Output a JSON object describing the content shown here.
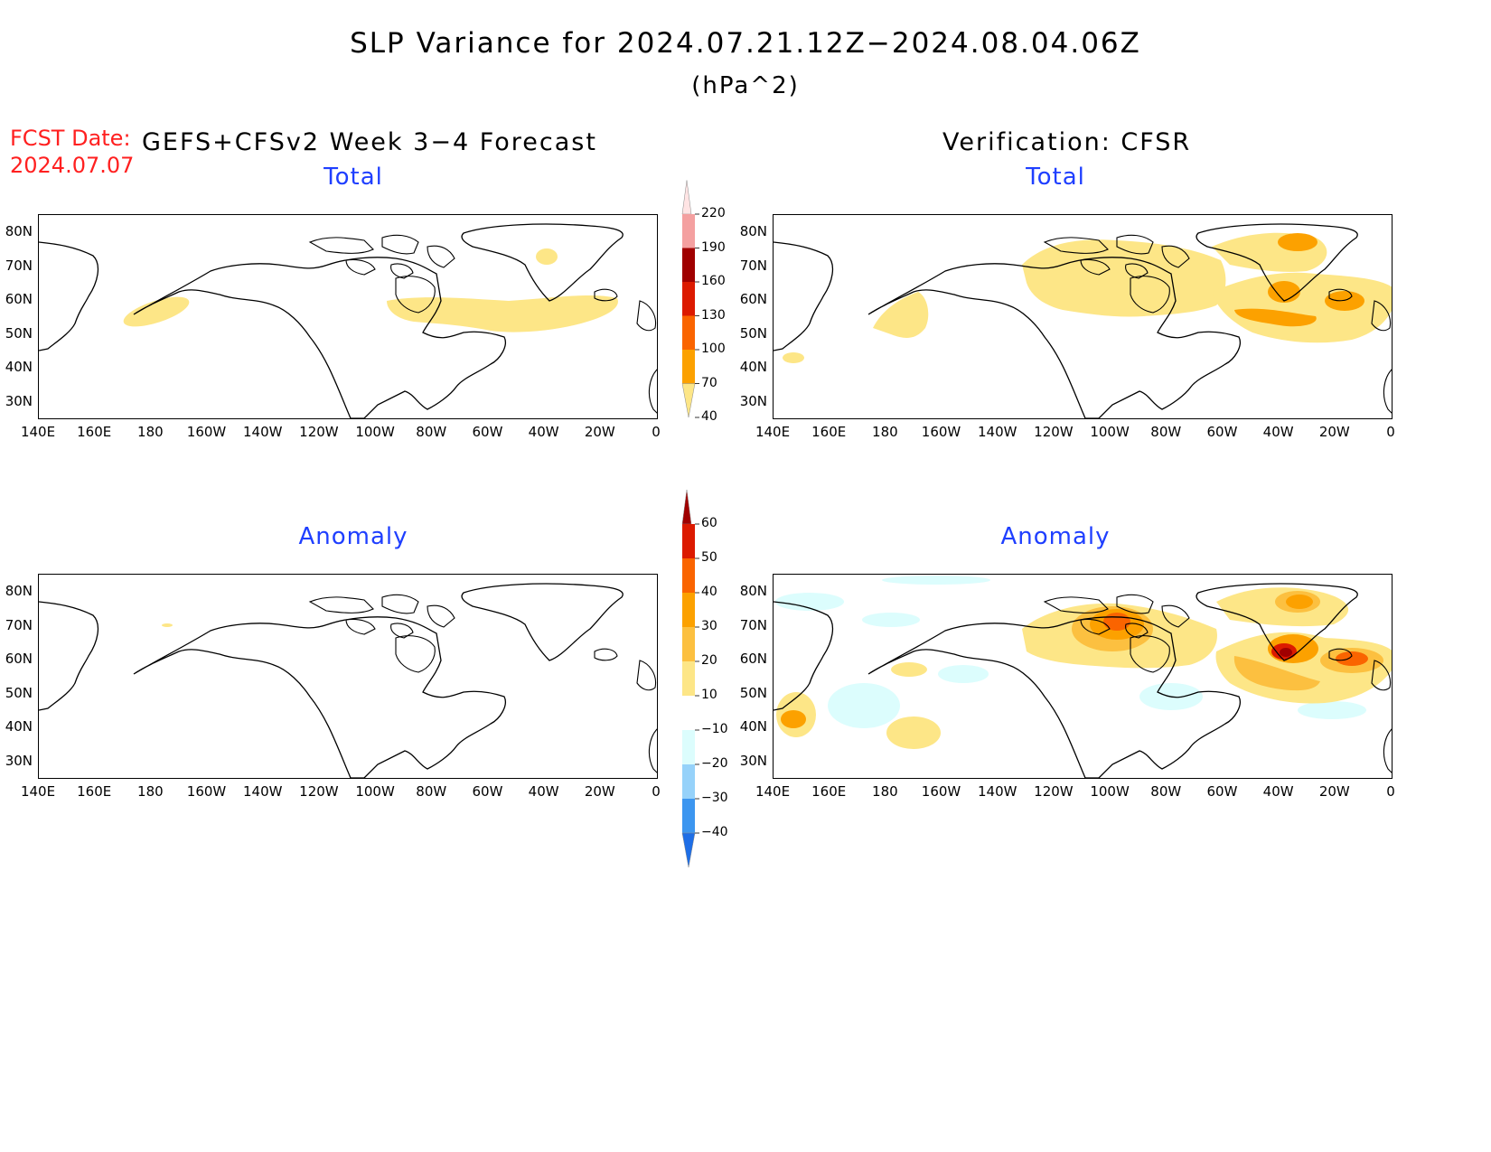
{
  "header": {
    "title": "SLP Variance for 2024.07.21.12Z−2024.08.04.06Z",
    "units": "(hPa^2)",
    "fcst_label": "FCST Date:",
    "fcst_date": "2024.07.07",
    "left_heading": "GEFS+CFSv2 Week 3−4 Forecast",
    "right_heading": "Verification: CFSR"
  },
  "panels": {
    "total_label": "Total",
    "anomaly_label": "Anomaly"
  },
  "axes": {
    "lat_labels": [
      "80N",
      "70N",
      "60N",
      "50N",
      "40N",
      "30N"
    ],
    "lon_labels": [
      "140E",
      "160E",
      "180",
      "160W",
      "140W",
      "120W",
      "100W",
      "80W",
      "60W",
      "40W",
      "20W",
      "0"
    ]
  },
  "colorbar_total": {
    "levels": [
      "220",
      "190",
      "160",
      "130",
      "100",
      "70",
      "40"
    ],
    "colors": [
      "#ffe4e4",
      "#f4a0a0",
      "#a00000",
      "#dc1a00",
      "#fa6400",
      "#fca100",
      "#fde687"
    ]
  },
  "colorbar_anomaly": {
    "levels": [
      "60",
      "50",
      "40",
      "30",
      "20",
      "10",
      "−10",
      "−20",
      "−30",
      "−40"
    ],
    "colors": [
      "#a00000",
      "#dc1a00",
      "#fa6400",
      "#fca100",
      "#fcc040",
      "#fde687",
      "#ffffff",
      "#dcfdfd",
      "#96d2fa",
      "#3c96f0",
      "#1e6ee6"
    ]
  }
}
